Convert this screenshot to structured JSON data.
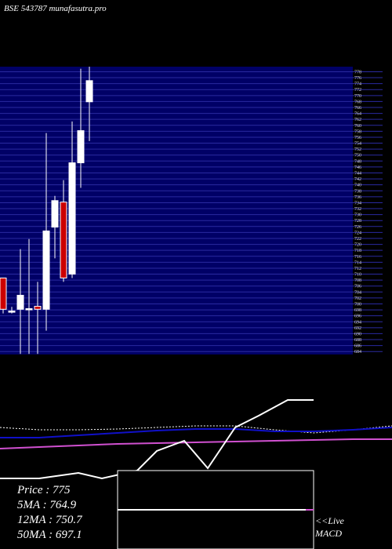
{
  "chart_data": {
    "type": "candlestick",
    "title": "BSE 543787 munafasutra.pro",
    "candles": [
      {
        "open": 708.7,
        "high": 708.7,
        "low": 696.8,
        "close": 698.2
      },
      {
        "open": 697.6,
        "high": 699,
        "low": 696.8,
        "close": 697.6
      },
      {
        "open": 698.2,
        "high": 718.4,
        "low": 683.2,
        "close": 702.9
      },
      {
        "open": 698.4,
        "high": 721.8,
        "low": 683.2,
        "close": 698.4
      },
      {
        "open": 699.2,
        "high": 707.4,
        "low": 683.2,
        "close": 698.2
      },
      {
        "open": 698.2,
        "high": 757.4,
        "low": 691,
        "close": 724.5
      },
      {
        "open": 725.8,
        "high": 736.3,
        "low": 715.3,
        "close": 734.7
      },
      {
        "open": 734.2,
        "high": 741.6,
        "low": 707.4,
        "close": 708.7
      },
      {
        "open": 710,
        "high": 761.3,
        "low": 708.7,
        "close": 747.4
      },
      {
        "open": 747.4,
        "high": 779,
        "low": 739,
        "close": 758.2
      },
      {
        "open": 767.9,
        "high": 779.7,
        "low": 754.7,
        "close": 775
      }
    ],
    "up_color": "#ffffff",
    "down_color": "#cc0000",
    "grid_color": "#2a2aa0",
    "ylim": [
      683,
      779.7
    ],
    "yticks": [
      684,
      686,
      688,
      690,
      692,
      694,
      696,
      698,
      700,
      702,
      704,
      706,
      708,
      710,
      712,
      714,
      716,
      718,
      720,
      722,
      724,
      726,
      728,
      730,
      732,
      734,
      736,
      738,
      740,
      742,
      744,
      746,
      748,
      750,
      752,
      754,
      756,
      758,
      760,
      762,
      764,
      766,
      768,
      770,
      772,
      774,
      776,
      778
    ],
    "indicator": {
      "ylim": [
        0,
        200
      ],
      "series": [
        {
          "name": "dashed",
          "color": "#ffffff",
          "x": [
            0,
            50,
            100,
            150,
            200,
            250,
            300,
            350,
            400,
            450,
            500
          ],
          "values": [
            155,
            152,
            152,
            153,
            155,
            157,
            157,
            152,
            148,
            152,
            157
          ]
        },
        {
          "name": "blue",
          "color": "#1010c8",
          "x": [
            0,
            50,
            100,
            150,
            200,
            250,
            300,
            350,
            400,
            450,
            500
          ],
          "values": [
            142,
            142,
            145,
            148,
            151,
            153,
            153,
            150,
            150,
            152,
            155
          ]
        },
        {
          "name": "magenta",
          "color": "#d050d0",
          "x": [
            0,
            50,
            100,
            150,
            200,
            250,
            300,
            350,
            400,
            450,
            500
          ],
          "values": [
            128,
            130,
            132,
            134,
            135,
            136,
            137,
            138,
            139,
            140,
            140
          ]
        },
        {
          "name": "price",
          "color": "#ffffff",
          "x": [
            0,
            50,
            100,
            130,
            175,
            200,
            235,
            265,
            300,
            330,
            367,
            400
          ],
          "values": [
            90,
            90,
            97,
            90,
            100,
            125,
            138,
            103,
            155,
            170,
            190,
            190
          ]
        }
      ]
    },
    "info": [
      "Price   : 775",
      "5MA : 764.9",
      "12MA : 750.7",
      "50MA : 697.1"
    ],
    "live": "<<Live",
    "macd": "MACD"
  }
}
